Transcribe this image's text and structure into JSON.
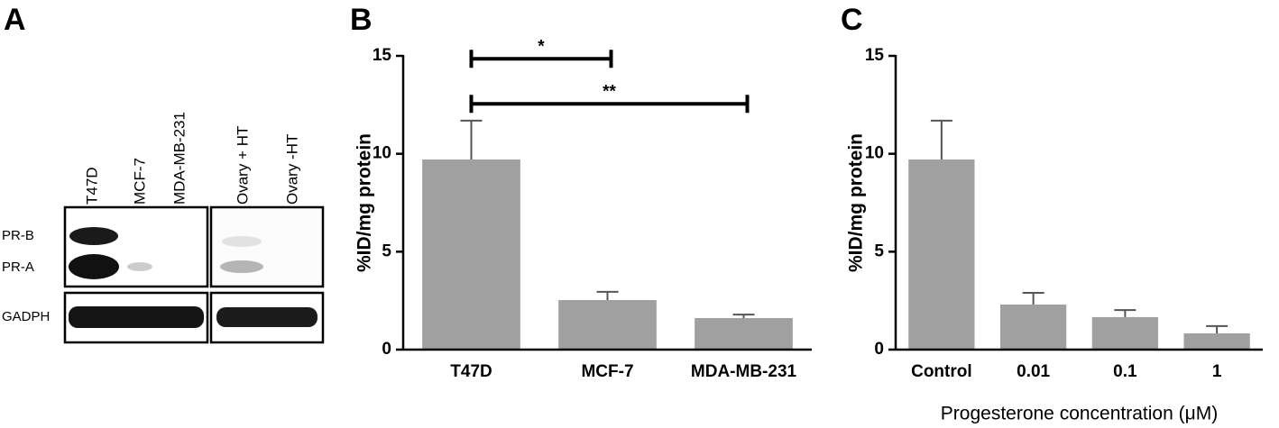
{
  "panels": [
    "A",
    "B",
    "C"
  ],
  "blot": {
    "lanes": [
      "T47D",
      "MCF-7",
      "MDA-MB-231",
      "Ovary  + HT",
      "Ovary  -HT"
    ],
    "rows": [
      "PR-B",
      "PR-A",
      "GADPH"
    ]
  },
  "chart_data": [
    {
      "type": "bar",
      "y_label": "%ID/mg protein",
      "categories": [
        "T47D",
        "MCF-7",
        "MDA-MB-231"
      ],
      "values": [
        9.71,
        2.53,
        1.61
      ],
      "errors": [
        1.98,
        0.42,
        0.18
      ],
      "color": "#a0a0a0",
      "ylim": [
        0,
        15
      ],
      "yticks": [
        0,
        5,
        10,
        15
      ],
      "annotations": [
        {
          "label": "*",
          "from": "T47D",
          "to": "MCF-7",
          "y": 14.85
        },
        {
          "label": "**",
          "from": "T47D",
          "to": "MDA-MB-231",
          "y": 12.55
        }
      ]
    },
    {
      "type": "bar",
      "y_label": "%ID/mg protein",
      "x_label": "Progesterone concentration (μM)",
      "categories": [
        "Control",
        "0.01",
        "0.1",
        "1"
      ],
      "values": [
        9.71,
        2.3,
        1.66,
        0.83
      ],
      "errors": [
        1.98,
        0.6,
        0.36,
        0.37
      ],
      "color": "#a0a0a0",
      "ylim": [
        0,
        15
      ],
      "yticks": [
        0,
        5,
        10,
        15
      ]
    }
  ]
}
